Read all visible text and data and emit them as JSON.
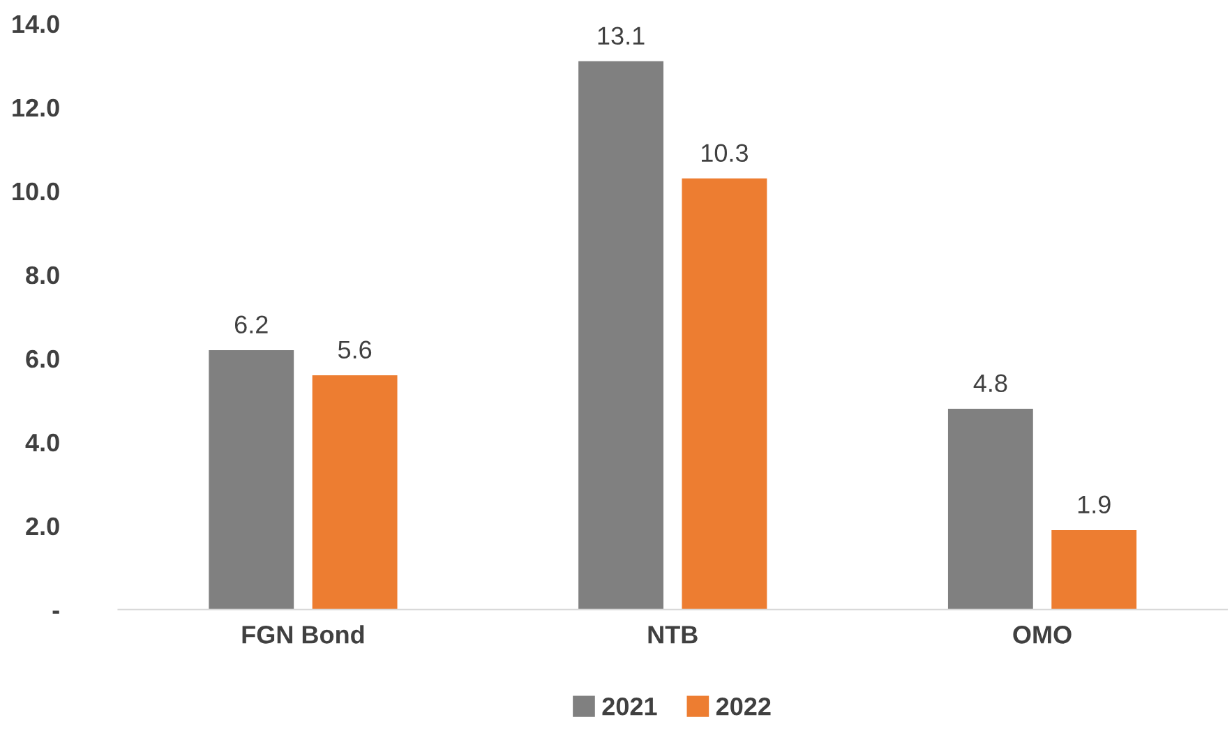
{
  "chart_data": {
    "type": "bar",
    "categories": [
      "FGN Bond",
      "NTB",
      "OMO"
    ],
    "series": [
      {
        "name": "2021",
        "color": "#808080",
        "values": [
          6.2,
          13.1,
          4.8
        ]
      },
      {
        "name": "2022",
        "color": "#ed7d31",
        "values": [
          5.6,
          10.3,
          1.9
        ]
      }
    ],
    "ylim": [
      0,
      14
    ],
    "yticks": [
      {
        "value": 0,
        "label": "-"
      },
      {
        "value": 2,
        "label": "2.0"
      },
      {
        "value": 4,
        "label": "4.0"
      },
      {
        "value": 6,
        "label": "6.0"
      },
      {
        "value": 8,
        "label": "8.0"
      },
      {
        "value": 10,
        "label": "10.0"
      },
      {
        "value": 12,
        "label": "12.0"
      },
      {
        "value": 14,
        "label": "14.0"
      }
    ],
    "grid": false,
    "legend": "bottom",
    "data_labels": true
  }
}
